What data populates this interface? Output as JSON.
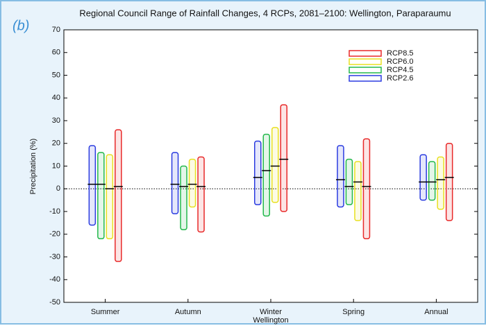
{
  "panel_label": "(b)",
  "chart_data": {
    "type": "range",
    "title": "Regional Council Range of Rainfall Changes, 4 RCPs, 2081–2100: Wellington, Paraparaumu",
    "x_label": "Wellington",
    "y_label": "Precipitation (%)",
    "categories": [
      "Summer",
      "Autumn",
      "Winter",
      "Spring",
      "Annual"
    ],
    "series": [
      {
        "name": "RCP2.6",
        "color": "#2a3be0",
        "min": [
          -16,
          -11,
          -7,
          -8,
          -5
        ],
        "max": [
          19,
          16,
          21,
          19,
          15
        ],
        "mean": [
          2,
          2,
          5,
          4,
          3
        ]
      },
      {
        "name": "RCP4.5",
        "color": "#22b84a",
        "min": [
          -22,
          -18,
          -12,
          -7,
          -5
        ],
        "max": [
          16,
          10,
          24,
          13,
          12
        ],
        "mean": [
          2,
          1,
          8,
          1,
          3
        ]
      },
      {
        "name": "RCP6.0",
        "color": "#e8e020",
        "min": [
          -22,
          -8,
          -6,
          -14,
          -9
        ],
        "max": [
          15,
          13,
          27,
          12,
          14
        ],
        "mean": [
          0,
          2,
          10,
          3,
          4
        ]
      },
      {
        "name": "RCP8.5",
        "color": "#e82828",
        "min": [
          -32,
          -19,
          -10,
          -22,
          -14
        ],
        "max": [
          26,
          14,
          37,
          22,
          20
        ],
        "mean": [
          1,
          1,
          13,
          1,
          5
        ]
      }
    ],
    "ylim": [
      -50,
      70
    ],
    "yticks": [
      -50,
      -40,
      -30,
      -20,
      -10,
      0,
      10,
      20,
      30,
      40,
      50,
      60,
      70
    ],
    "reference_line": 0,
    "legend": "upper-right"
  }
}
